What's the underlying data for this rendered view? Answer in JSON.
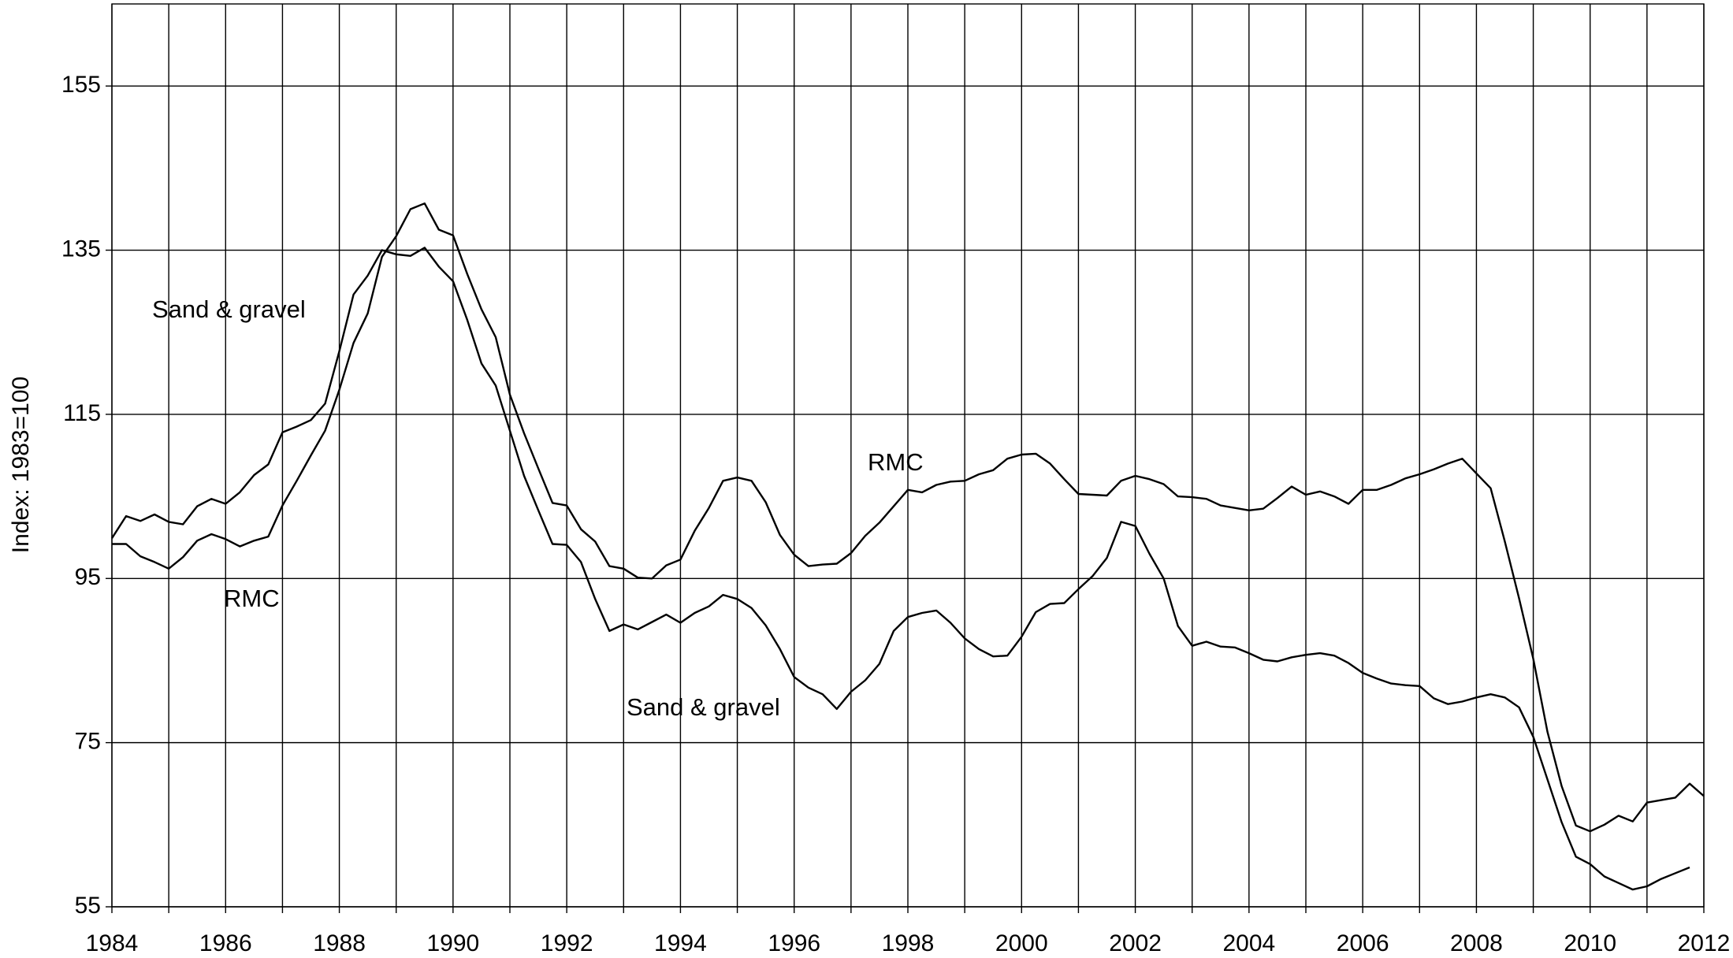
{
  "chart_data": {
    "type": "line",
    "y_label": "Index: 1983=100",
    "annotations": [
      "Sand & gravel",
      "RMC",
      "RMC",
      "Sand & gravel"
    ],
    "x": [
      1984,
      1984.25,
      1984.5,
      1984.75,
      1985,
      1985.25,
      1985.5,
      1985.75,
      1986,
      1986.25,
      1986.5,
      1986.75,
      1987,
      1987.25,
      1987.5,
      1987.75,
      1988,
      1988.25,
      1988.5,
      1988.75,
      1989,
      1989.25,
      1989.5,
      1989.75,
      1990,
      1990.25,
      1990.5,
      1990.75,
      1991,
      1991.25,
      1991.5,
      1991.75,
      1992,
      1992.25,
      1992.5,
      1992.75,
      1993,
      1993.25,
      1993.5,
      1993.75,
      1994,
      1994.25,
      1994.5,
      1994.75,
      1995,
      1995.25,
      1995.5,
      1995.75,
      1996,
      1996.25,
      1996.5,
      1996.75,
      1997,
      1997.25,
      1997.5,
      1997.75,
      1998,
      1998.25,
      1998.5,
      1998.75,
      1999,
      1999.25,
      1999.5,
      1999.75,
      2000,
      2000.25,
      2000.5,
      2000.75,
      2001,
      2001.25,
      2001.5,
      2001.75,
      2002,
      2002.25,
      2002.5,
      2002.75,
      2003,
      2003.25,
      2003.5,
      2003.75,
      2004,
      2004.25,
      2004.5,
      2004.75,
      2005,
      2005.25,
      2005.5,
      2005.75,
      2006,
      2006.25,
      2006.5,
      2006.75,
      2007,
      2007.25,
      2007.5,
      2007.75,
      2008,
      2008.25,
      2008.5,
      2008.75,
      2009,
      2009.25,
      2009.5,
      2009.75,
      2010,
      2010.25,
      2010.5,
      2010.75,
      2011,
      2011.25,
      2011.5,
      2011.75,
      2012
    ],
    "series": [
      {
        "name": "Sand & gravel",
        "color": "#000000",
        "values": [
          99.9,
          102.6,
          102.0,
          102.8,
          101.9,
          101.6,
          103.8,
          104.7,
          104.1,
          105.5,
          107.6,
          108.9,
          112.8,
          113.5,
          114.3,
          116.3,
          122.7,
          129.6,
          131.9,
          135.0,
          134.5,
          134.3,
          135.3,
          133.0,
          131.2,
          126.5,
          121.2,
          118.5,
          113.0,
          107.5,
          103.3,
          99.2,
          99.1,
          97.0,
          92.5,
          88.6,
          89.4,
          88.8,
          89.7,
          90.6,
          89.6,
          90.8,
          91.6,
          93.0,
          92.5,
          91.4,
          89.3,
          86.4,
          83.0,
          81.7,
          80.9,
          79.1,
          81.2,
          82.6,
          84.6,
          88.6,
          90.3,
          90.8,
          91.1,
          89.6,
          87.7,
          86.4,
          85.5,
          85.6,
          87.9,
          90.9,
          91.9,
          92.0,
          93.7,
          95.3,
          97.5,
          101.9,
          101.4,
          98.0,
          95.0,
          89.2,
          86.8,
          87.3,
          86.7,
          86.6,
          85.9,
          85.1,
          84.9,
          85.4,
          85.7,
          85.9,
          85.6,
          84.7,
          83.5,
          82.8,
          82.2,
          82.0,
          81.9,
          80.4,
          79.7,
          80.0,
          80.5,
          80.9,
          80.5,
          79.3,
          75.7,
          70.5,
          65.3,
          61.1,
          60.2,
          58.7,
          57.9,
          57.1,
          57.5,
          58.4,
          59.1,
          59.8,
          null
        ]
      },
      {
        "name": "RMC",
        "color": "#000000",
        "values": [
          99.2,
          99.2,
          97.7,
          97.0,
          96.2,
          97.6,
          99.6,
          100.4,
          99.8,
          98.9,
          99.6,
          100.1,
          103.9,
          106.9,
          110.0,
          113.0,
          118.0,
          123.7,
          127.3,
          134.2,
          136.7,
          140.0,
          140.7,
          137.5,
          136.8,
          132.1,
          127.8,
          124.4,
          117.4,
          112.7,
          108.4,
          104.2,
          103.9,
          101.0,
          99.5,
          96.5,
          96.2,
          95.1,
          95.0,
          96.6,
          97.3,
          100.8,
          103.6,
          106.9,
          107.3,
          106.9,
          104.3,
          100.3,
          97.9,
          96.5,
          96.7,
          96.8,
          98.1,
          100.2,
          101.8,
          103.8,
          105.8,
          105.5,
          106.4,
          106.8,
          106.9,
          107.7,
          108.2,
          109.6,
          110.1,
          110.2,
          109.0,
          107.1,
          105.3,
          105.2,
          105.1,
          106.9,
          107.5,
          107.1,
          106.5,
          105.0,
          104.9,
          104.7,
          103.9,
          103.6,
          103.3,
          103.5,
          104.8,
          106.2,
          105.2,
          105.6,
          105.0,
          104.1,
          105.8,
          105.8,
          106.4,
          107.2,
          107.7,
          108.3,
          109.0,
          109.6,
          107.8,
          106.0,
          99.5,
          92.6,
          85.2,
          76.3,
          69.7,
          64.9,
          64.2,
          65.0,
          66.1,
          65.4,
          67.7,
          68.0,
          68.3,
          70.0,
          68.5
        ]
      }
    ],
    "xlim": [
      1984,
      2012
    ],
    "xticks": [
      1984,
      1986,
      1988,
      1990,
      1992,
      1994,
      1996,
      1998,
      2000,
      2002,
      2004,
      2006,
      2008,
      2010,
      2012
    ],
    "xgrid_minor": [
      1985,
      1987,
      1989,
      1991,
      1993,
      1995,
      1997,
      1999,
      2001,
      2003,
      2005,
      2007,
      2009,
      2011
    ],
    "ylim": [
      55,
      165
    ],
    "yticks": [
      55,
      75,
      95,
      115,
      135,
      155
    ],
    "grid": true,
    "legend": false
  }
}
